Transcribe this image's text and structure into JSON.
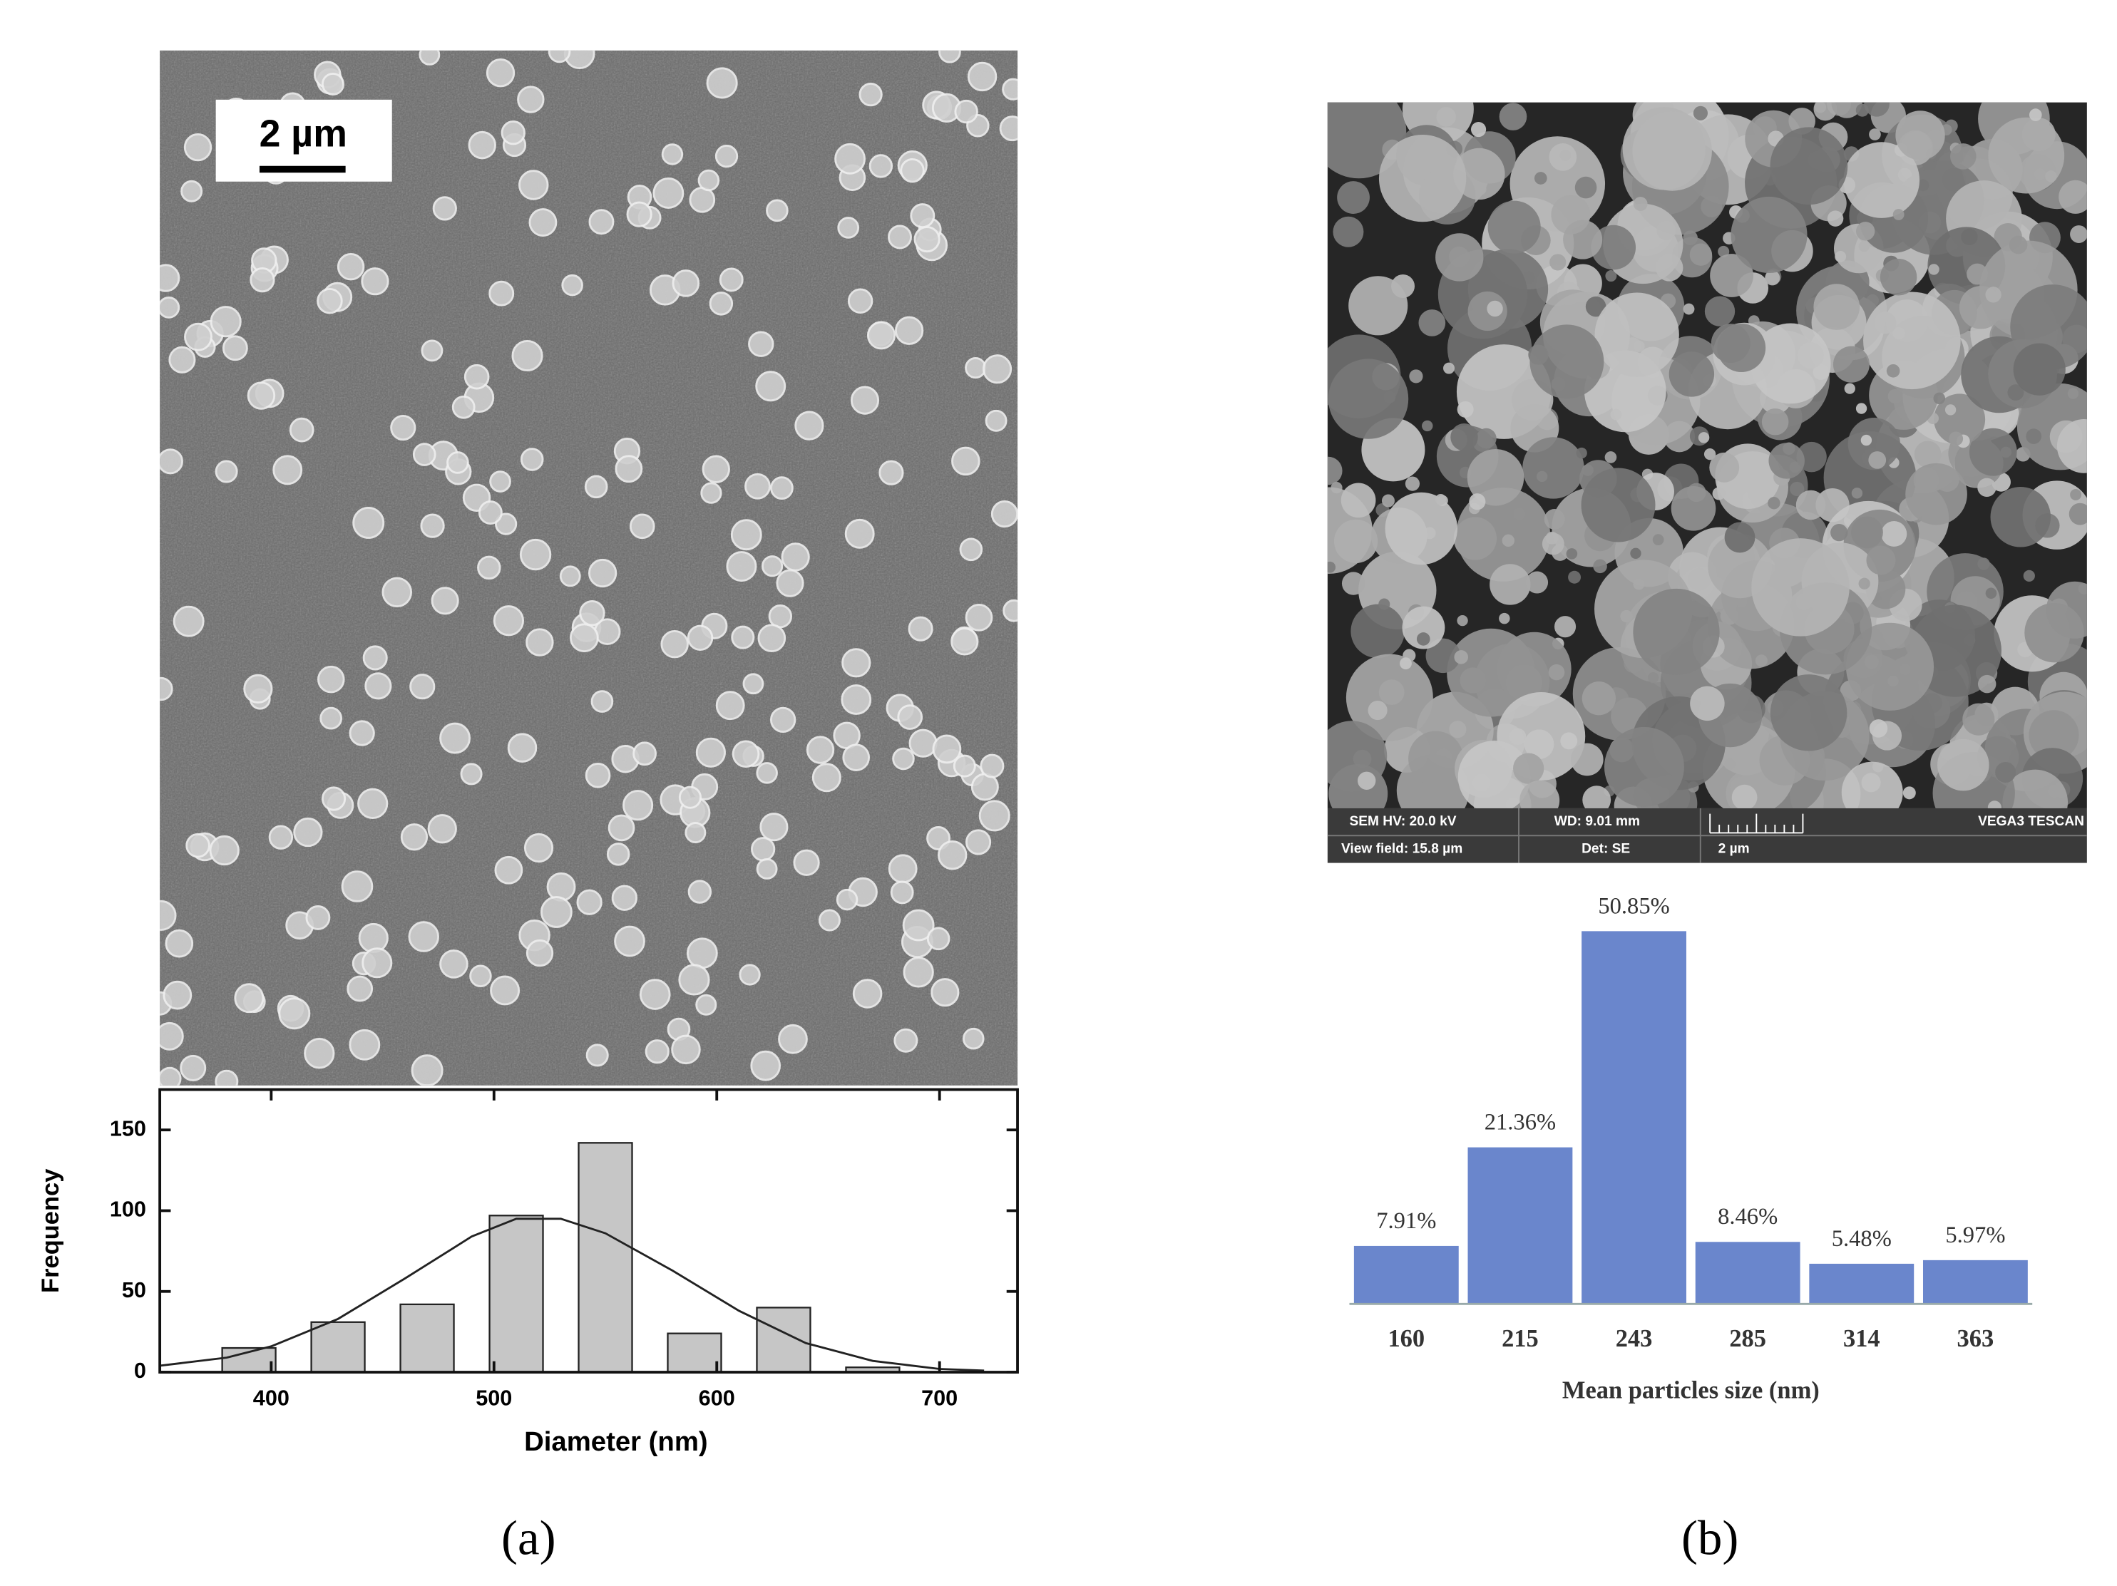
{
  "chart_data": [
    {
      "type": "bar",
      "x": [
        390,
        430,
        470,
        510,
        550,
        590,
        630,
        670
      ],
      "values": [
        15,
        31,
        42,
        97,
        142,
        24,
        40,
        3
      ],
      "fit": {
        "x": [
          350,
          380,
          400,
          430,
          460,
          490,
          510,
          530,
          550,
          580,
          610,
          640,
          670,
          700,
          720
        ],
        "values": [
          4,
          9,
          16,
          33,
          58,
          84,
          95,
          95,
          86,
          63,
          38,
          18,
          7,
          2,
          1
        ]
      },
      "xlim": [
        350,
        735
      ],
      "ylim": [
        0,
        175
      ],
      "xticks": [
        400,
        500,
        600,
        700
      ],
      "yticks": [
        0,
        50,
        100,
        150
      ],
      "xlabel": "Diameter (nm)",
      "ylabel": "Frequency",
      "color": "#c6c6c6"
    },
    {
      "type": "bar",
      "categories": [
        "160",
        "215",
        "243",
        "285",
        "314",
        "363"
      ],
      "values": [
        7.91,
        21.36,
        50.85,
        8.46,
        5.48,
        5.97
      ],
      "value_labels": [
        "7.91%",
        "21.36%",
        "50.85%",
        "8.46%",
        "5.48%",
        "5.97%"
      ],
      "xlabel": "Mean particles size (nm)",
      "color": "#6a86cc"
    }
  ],
  "panels": [
    {
      "label": "(a)",
      "scale_bar": "2 µm"
    },
    {
      "label": "(b)",
      "info": [
        "SEM HV: 20.0 kV",
        "WD: 9.01 mm",
        "VEGA3 TESCAN",
        "View field: 15.8 µm",
        "Det: SE",
        "2 µm"
      ]
    }
  ]
}
